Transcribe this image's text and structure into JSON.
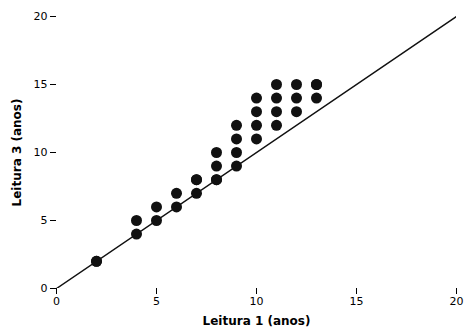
{
  "chart_data": {
    "type": "scatter",
    "x": [
      2,
      2,
      4,
      4,
      5,
      5,
      6,
      6,
      7,
      7,
      7,
      8,
      8,
      8,
      8,
      9,
      9,
      9,
      9,
      10,
      10,
      10,
      10,
      11,
      11,
      11,
      11,
      12,
      12,
      12,
      13,
      13,
      13
    ],
    "y": [
      2,
      2,
      4,
      5,
      5,
      6,
      6,
      7,
      7,
      8,
      8,
      8,
      9,
      10,
      8,
      9,
      10,
      11,
      12,
      11,
      12,
      13,
      14,
      12,
      13,
      14,
      15,
      13,
      14,
      15,
      14,
      15,
      15
    ],
    "xlabel": "Leitura 1 (anos)",
    "ylabel": "Leitura 3 (anos)",
    "xlim": [
      0,
      20
    ],
    "ylim": [
      0,
      20
    ],
    "xticks": [
      0,
      5,
      10,
      15,
      20
    ],
    "yticks": [
      0,
      5,
      10,
      15,
      20
    ],
    "color": "#111111",
    "grid": false
  }
}
